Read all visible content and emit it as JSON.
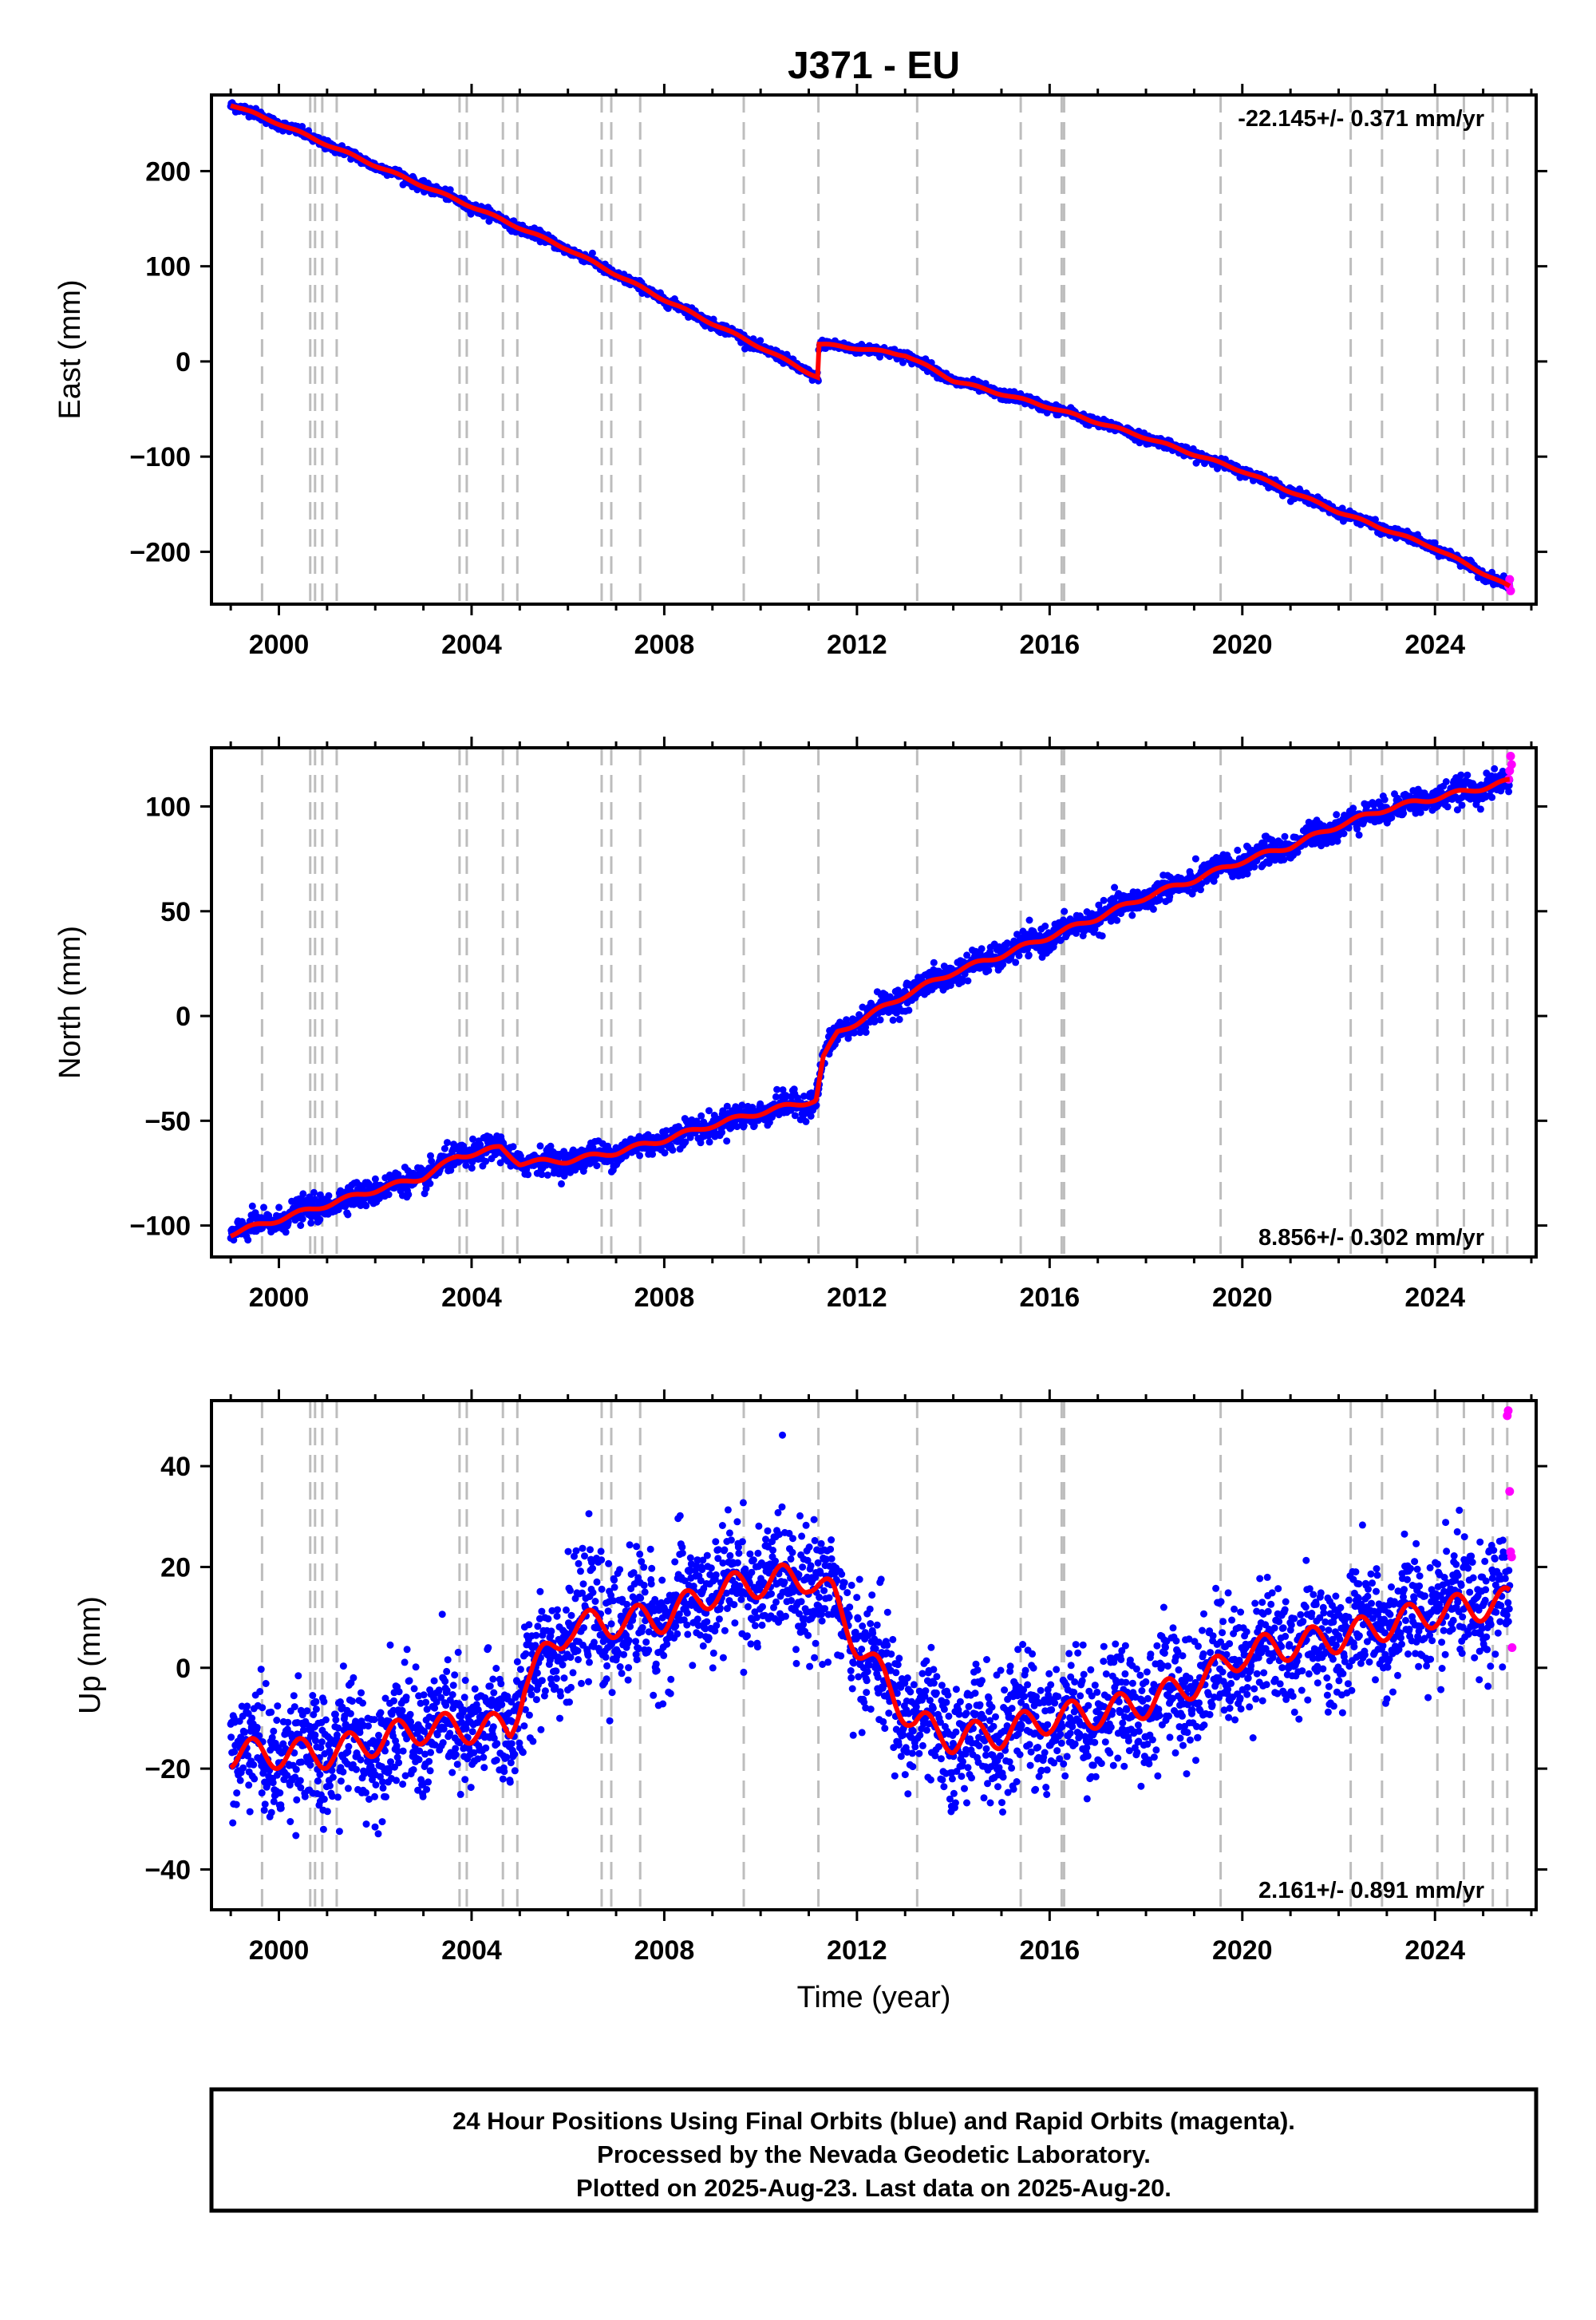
{
  "chart_data": {
    "type": "scatter",
    "title": "J371 - EU",
    "xlabel": "Time (year)",
    "x_ticks": [
      "2000",
      "2004",
      "2008",
      "2012",
      "2016",
      "2020",
      "2024"
    ],
    "xlim": [
      1998.6,
      2026.1
    ],
    "grid": false,
    "equipment_change_lines": [
      1999.65,
      2000.65,
      2000.75,
      2000.9,
      2001.2,
      2003.75,
      2003.9,
      2004.65,
      2004.95,
      2006.7,
      2006.9,
      2007.5,
      2009.65,
      2011.2,
      2013.25,
      2015.4,
      2016.25,
      2016.3,
      2019.55,
      2022.25,
      2022.9,
      2024.05,
      2024.6,
      2025.2,
      2025.5
    ],
    "series_colors": {
      "final_orbits": "#0000ff",
      "rapid_orbits": "#ff00ff",
      "model_fit": "#ff0000",
      "equipment_lines": "#bdbdbd"
    },
    "panels": [
      {
        "name": "east",
        "ylabel": "East (mm)",
        "ylim": [
          -255,
          280
        ],
        "y_ticks": [
          200,
          100,
          0,
          -100,
          -200
        ],
        "rate_label": "-22.145+/- 0.371 mm/yr",
        "rate_position": "top-right",
        "noise": 2.5,
        "trend": [
          [
            1999.0,
            270
          ],
          [
            2000.0,
            250
          ],
          [
            2002.0,
            206
          ],
          [
            2004.0,
            163
          ],
          [
            2006.0,
            118
          ],
          [
            2008.0,
            65
          ],
          [
            2010.0,
            15
          ],
          [
            2011.2,
            -17
          ],
          [
            2011.21,
            18
          ],
          [
            2012.0,
            14
          ],
          [
            2013.0,
            7
          ],
          [
            2014.0,
            -20
          ],
          [
            2016.0,
            -48
          ],
          [
            2018.0,
            -80
          ],
          [
            2020.0,
            -115
          ],
          [
            2022.0,
            -158
          ],
          [
            2024.0,
            -196
          ],
          [
            2025.55,
            -237
          ]
        ],
        "rapid_points": [
          [
            2025.53,
            -236
          ],
          [
            2025.55,
            -229
          ],
          [
            2025.57,
            -241
          ]
        ]
      },
      {
        "name": "north",
        "ylabel": "North (mm)",
        "ylim": [
          -115,
          128
        ],
        "y_ticks": [
          100,
          50,
          0,
          -50,
          -100
        ],
        "rate_label": "8.856+/- 0.302 mm/yr",
        "rate_position": "bottom-right",
        "noise": 3,
        "trend": [
          [
            1999.0,
            -104
          ],
          [
            2000.0,
            -97
          ],
          [
            2001.0,
            -90
          ],
          [
            2002.0,
            -83
          ],
          [
            2003.0,
            -77
          ],
          [
            2003.7,
            -67
          ],
          [
            2004.6,
            -63
          ],
          [
            2005.0,
            -70
          ],
          [
            2006.0,
            -69
          ],
          [
            2007.0,
            -65
          ],
          [
            2008.0,
            -59
          ],
          [
            2009.0,
            -52
          ],
          [
            2010.0,
            -46
          ],
          [
            2011.15,
            -40
          ],
          [
            2011.3,
            -20
          ],
          [
            2011.6,
            -8
          ],
          [
            2012.0,
            -3
          ],
          [
            2013.0,
            10
          ],
          [
            2014.0,
            21
          ],
          [
            2015.0,
            29
          ],
          [
            2016.0,
            38
          ],
          [
            2017.0,
            47
          ],
          [
            2018.0,
            57
          ],
          [
            2019.0,
            65
          ],
          [
            2020.0,
            74
          ],
          [
            2021.0,
            81
          ],
          [
            2022.0,
            91
          ],
          [
            2023.0,
            99
          ],
          [
            2024.0,
            104
          ],
          [
            2025.0,
            109
          ],
          [
            2025.55,
            112
          ]
        ],
        "rapid_points": [
          [
            2025.53,
            113
          ],
          [
            2025.55,
            117
          ],
          [
            2025.57,
            124
          ],
          [
            2025.59,
            120
          ]
        ]
      },
      {
        "name": "up",
        "ylabel": "Up (mm)",
        "ylim": [
          -48,
          53
        ],
        "y_ticks": [
          40,
          20,
          0,
          -20,
          -40
        ],
        "rate_label": "2.161+/- 0.891 mm/yr",
        "rate_position": "bottom-right",
        "noise": 6,
        "trend": [
          [
            1999.0,
            -17
          ],
          [
            2001.0,
            -17
          ],
          [
            2003.0,
            -12
          ],
          [
            2004.8,
            -12
          ],
          [
            2005.1,
            -3
          ],
          [
            2006.0,
            8
          ],
          [
            2008.0,
            10
          ],
          [
            2009.0,
            15
          ],
          [
            2010.0,
            17
          ],
          [
            2011.0,
            18
          ],
          [
            2011.5,
            14
          ],
          [
            2012.0,
            5
          ],
          [
            2012.6,
            -3
          ],
          [
            2013.2,
            -11
          ],
          [
            2014.0,
            -14
          ],
          [
            2015.0,
            -13
          ],
          [
            2016.0,
            -10
          ],
          [
            2017.0,
            -9
          ],
          [
            2018.0,
            -7
          ],
          [
            2019.0,
            -3
          ],
          [
            2019.6,
            0
          ],
          [
            2020.0,
            3
          ],
          [
            2022.0,
            6
          ],
          [
            2024.0,
            11
          ],
          [
            2025.55,
            13
          ]
        ],
        "rapid_points": [
          [
            2025.5,
            50
          ],
          [
            2025.52,
            51
          ],
          [
            2025.55,
            35
          ],
          [
            2025.57,
            23
          ],
          [
            2025.59,
            22
          ],
          [
            2025.6,
            4
          ]
        ]
      }
    ],
    "footer_lines": [
      "24 Hour Positions Using Final Orbits (blue) and Rapid Orbits (magenta).",
      "Processed by the Nevada Geodetic Laboratory.",
      "Plotted on 2025-Aug-23. Last data on 2025-Aug-20."
    ]
  }
}
